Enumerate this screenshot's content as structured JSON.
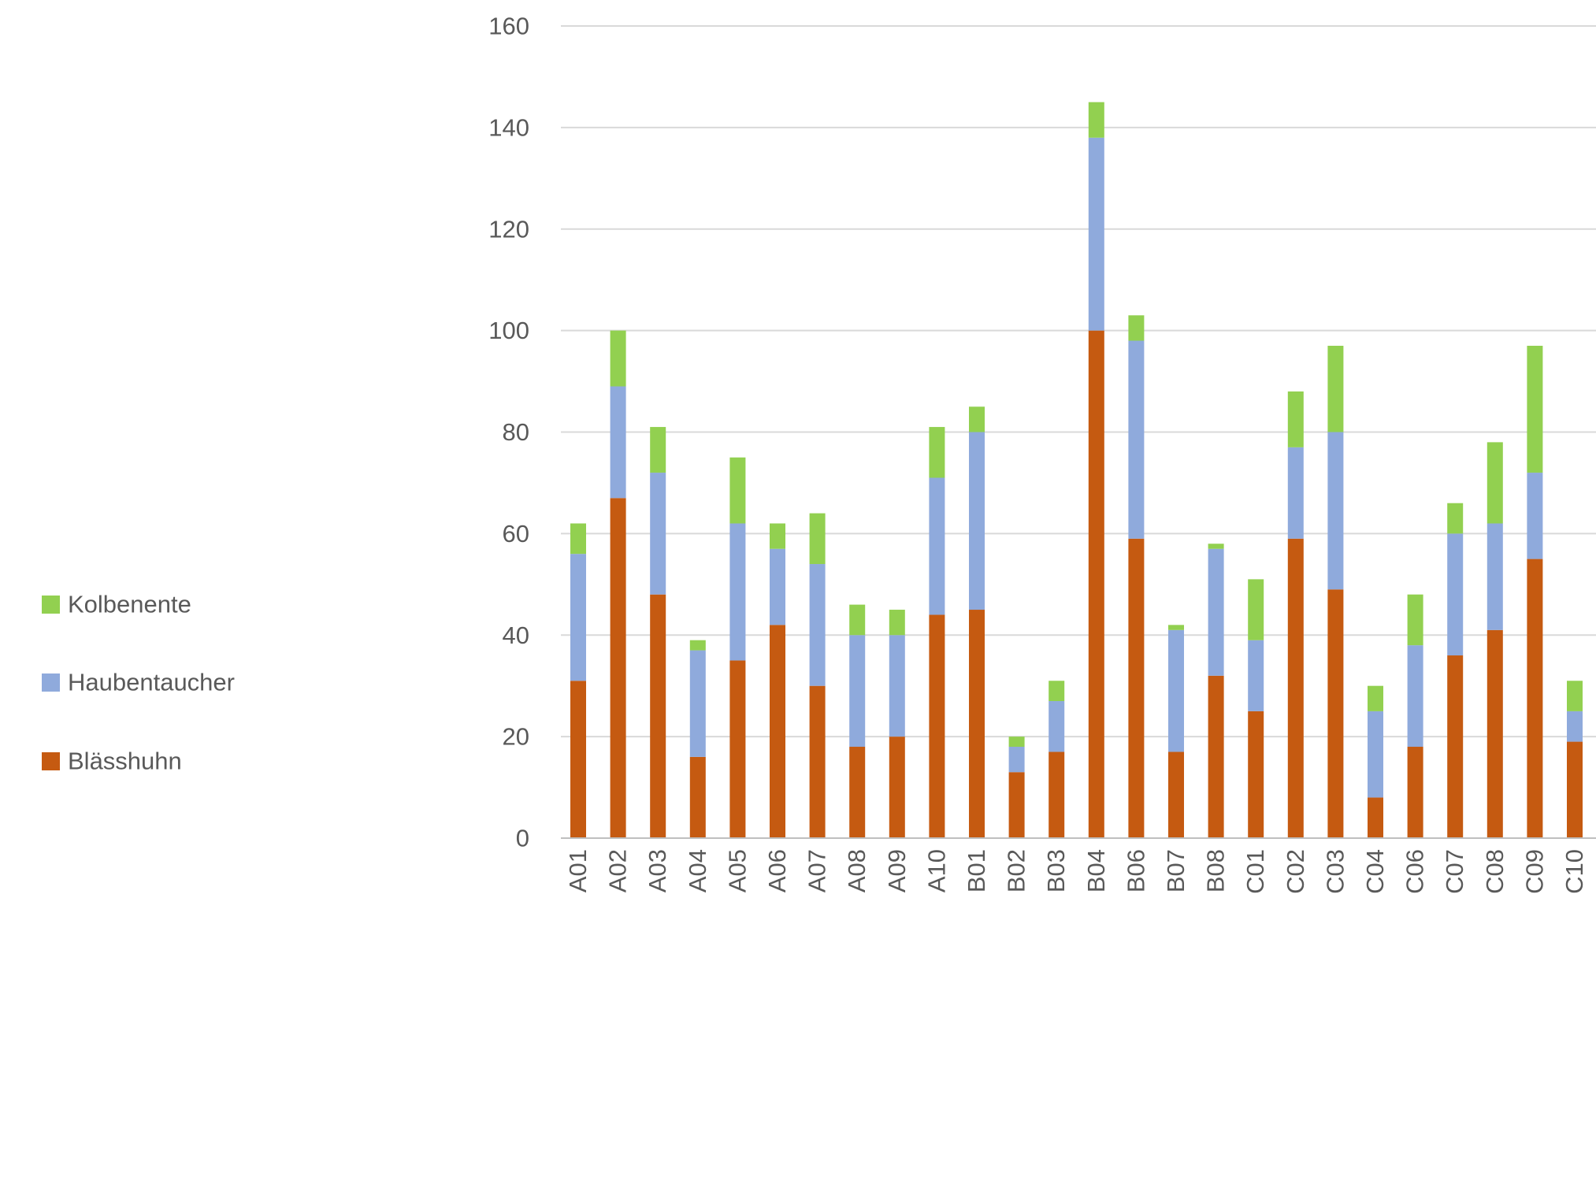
{
  "chart_data": {
    "type": "bar",
    "stacked": true,
    "title": "",
    "xlabel": "",
    "ylabel": "",
    "ylim": [
      0,
      160
    ],
    "yticks": [
      0,
      20,
      40,
      60,
      80,
      100,
      120,
      140,
      160
    ],
    "grid": true,
    "legend_position": "left",
    "categories": [
      "A01",
      "A02",
      "A03",
      "A04",
      "A05",
      "A06",
      "A07",
      "A08",
      "A09",
      "A10",
      "B01",
      "B02",
      "B03",
      "B04",
      "B06",
      "B07",
      "B08",
      "C01",
      "C02",
      "C03",
      "C04",
      "C06",
      "C07",
      "C08",
      "C09",
      "C10"
    ],
    "series": [
      {
        "name": "Blässhuhn",
        "color": "#C55A11",
        "values": [
          31,
          67,
          48,
          16,
          35,
          42,
          30,
          18,
          20,
          44,
          45,
          13,
          17,
          100,
          59,
          17,
          32,
          25,
          59,
          49,
          8,
          18,
          36,
          41,
          55,
          19
        ]
      },
      {
        "name": "Haubentaucher",
        "color": "#8FAADC",
        "values": [
          25,
          22,
          24,
          21,
          27,
          15,
          24,
          22,
          20,
          27,
          35,
          5,
          10,
          38,
          39,
          24,
          25,
          14,
          18,
          31,
          17,
          20,
          24,
          21,
          17,
          6
        ]
      },
      {
        "name": "Kolbenente",
        "color": "#92D050",
        "values": [
          6,
          11,
          9,
          2,
          13,
          5,
          10,
          6,
          5,
          10,
          5,
          2,
          4,
          7,
          5,
          1,
          1,
          12,
          11,
          17,
          5,
          10,
          6,
          16,
          25,
          6
        ]
      }
    ],
    "legend_order": [
      "Kolbenente",
      "Haubentaucher",
      "Blässhuhn"
    ]
  },
  "colors": {
    "grid": "#D9D9D9",
    "axis_line": "#BFBFBF",
    "text": "#595959"
  }
}
